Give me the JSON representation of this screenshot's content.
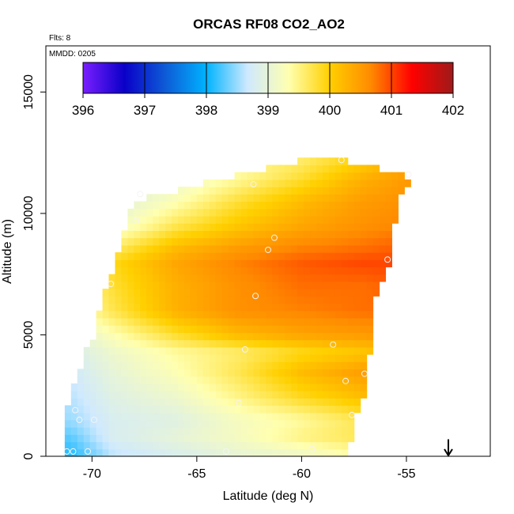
{
  "chart_data": {
    "type": "heatmap",
    "title": "ORCAS RF08 CO2_AO2",
    "subtitle_left": "Flts: 8",
    "inset_label": "MMDD: 0205",
    "xlabel": "Latitude (deg N)",
    "ylabel": "Altitude (m)",
    "xlim": [
      -72.2,
      -51.0
    ],
    "ylim": [
      0,
      16900
    ],
    "x_ticks": [
      -70,
      -65,
      -60,
      -55
    ],
    "x_tick_labels": [
      "-70",
      "-65",
      "-60",
      "-55"
    ],
    "y_ticks": [
      0,
      5000,
      10000,
      15000
    ],
    "y_tick_labels": [
      "0",
      "5000",
      "10000",
      "15000"
    ],
    "colorbar": {
      "min": 396,
      "max": 402,
      "ticks": [
        396,
        397,
        398,
        399,
        400,
        401,
        402
      ],
      "tick_labels": [
        "396",
        "397",
        "398",
        "399",
        "400",
        "401",
        "402"
      ],
      "stops": [
        "#7a1fff",
        "#0a00c8",
        "#0d5bd6",
        "#00b3ff",
        "#cfe9ff",
        "#ffffb0",
        "#ffd000",
        "#ff8a00",
        "#ff0000",
        "#9e1a1a"
      ]
    },
    "field": {
      "lat_start": -71.3,
      "lat_end": -54.9,
      "alt_start": 0,
      "alt_end": 12200,
      "profile_lat": [
        -71,
        -69,
        -66,
        -63,
        -60,
        -57,
        -55
      ],
      "profile_alt": [
        0,
        800,
        1500,
        2500,
        3500,
        4300,
        5000,
        6000,
        7000,
        8000,
        8600,
        9500,
        10500,
        11500,
        12200
      ],
      "values": [
        [
          398.1,
          398.6,
          398.8,
          399.0,
          399.1,
          399.4,
          399.6
        ],
        [
          398.3,
          398.8,
          399.0,
          399.2,
          399.5,
          399.7,
          399.9
        ],
        [
          398.5,
          398.8,
          398.9,
          399.2,
          399.4,
          399.7,
          400.0
        ],
        [
          398.6,
          398.9,
          399.1,
          399.5,
          399.9,
          400.2,
          400.4
        ],
        [
          398.7,
          399.0,
          399.3,
          399.7,
          400.2,
          400.5,
          400.6
        ],
        [
          398.8,
          399.1,
          399.4,
          399.6,
          399.9,
          400.1,
          400.3
        ],
        [
          398.9,
          399.3,
          399.8,
          400.2,
          400.4,
          400.5,
          400.6
        ],
        [
          399.2,
          399.7,
          400.3,
          400.6,
          400.7,
          400.8,
          400.8
        ],
        [
          399.3,
          399.8,
          400.3,
          400.6,
          400.8,
          400.8,
          400.9
        ],
        [
          399.0,
          399.9,
          400.4,
          400.7,
          400.9,
          401.0,
          401.0
        ],
        [
          398.9,
          399.6,
          400.2,
          400.5,
          400.7,
          400.8,
          400.9
        ],
        [
          398.7,
          399.1,
          399.7,
          400.1,
          400.4,
          400.6,
          400.7
        ],
        [
          398.2,
          398.9,
          399.3,
          399.8,
          400.2,
          400.5,
          400.6
        ],
        [
          398.5,
          398.8,
          399.0,
          399.4,
          399.8,
          400.3,
          400.5
        ],
        [
          398.8,
          399.0,
          399.2,
          399.4,
          399.6,
          400.0,
          400.3
        ]
      ]
    },
    "coverage": [
      {
        "alt": 0,
        "lat_min": -71.3,
        "lat_max": -57.7
      },
      {
        "alt": 1500,
        "lat_min": -71.3,
        "lat_max": -57.6
      },
      {
        "alt": 2500,
        "lat_min": -71.0,
        "lat_max": -56.9
      },
      {
        "alt": 3500,
        "lat_min": -70.6,
        "lat_max": -56.9
      },
      {
        "alt": 4500,
        "lat_min": -70.2,
        "lat_max": -56.7
      },
      {
        "alt": 5000,
        "lat_min": -69.9,
        "lat_max": -56.7
      },
      {
        "alt": 6500,
        "lat_min": -69.5,
        "lat_max": -56.5
      },
      {
        "alt": 8000,
        "lat_min": -68.9,
        "lat_max": -55.8
      },
      {
        "alt": 9500,
        "lat_min": -68.4,
        "lat_max": -55.6
      },
      {
        "alt": 10500,
        "lat_min": -68.0,
        "lat_max": -55.4
      },
      {
        "alt": 11500,
        "lat_min": -63.6,
        "lat_max": -54.8
      },
      {
        "alt": 12200,
        "lat_min": -59.8,
        "lat_max": -57.9
      }
    ],
    "flight_points": [
      {
        "lat": -71.2,
        "alt": 200
      },
      {
        "lat": -70.9,
        "alt": 200
      },
      {
        "lat": -70.2,
        "alt": 200
      },
      {
        "lat": -63.6,
        "alt": 200
      },
      {
        "lat": -59.5,
        "alt": 300
      },
      {
        "lat": -70.8,
        "alt": 1900
      },
      {
        "lat": -70.6,
        "alt": 1500
      },
      {
        "lat": -69.9,
        "alt": 1500
      },
      {
        "lat": -63.0,
        "alt": 2200
      },
      {
        "lat": -57.6,
        "alt": 1700
      },
      {
        "lat": -57.9,
        "alt": 3100
      },
      {
        "lat": -57.0,
        "alt": 3400
      },
      {
        "lat": -62.7,
        "alt": 4400
      },
      {
        "lat": -58.5,
        "alt": 4600
      },
      {
        "lat": -69.1,
        "alt": 7100
      },
      {
        "lat": -62.2,
        "alt": 6600
      },
      {
        "lat": -61.6,
        "alt": 8500
      },
      {
        "lat": -61.3,
        "alt": 9000
      },
      {
        "lat": -55.9,
        "alt": 8100
      },
      {
        "lat": -67.9,
        "alt": 9700
      },
      {
        "lat": -67.7,
        "alt": 10800
      },
      {
        "lat": -62.3,
        "alt": 11200
      },
      {
        "lat": -58.1,
        "alt": 12200
      },
      {
        "lat": -54.9,
        "alt": 11600
      }
    ],
    "arrow": {
      "lat": -53.0,
      "alt_top": 700,
      "alt_bottom": 0,
      "direction": "down"
    }
  }
}
